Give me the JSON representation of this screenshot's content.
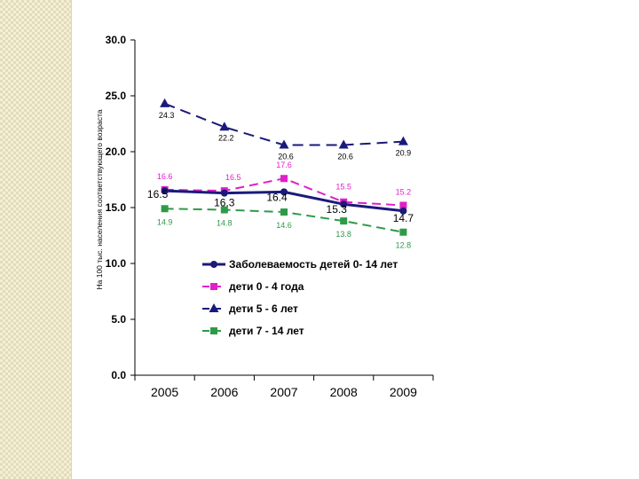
{
  "chart_data": {
    "type": "line",
    "categories": [
      "2005",
      "2006",
      "2007",
      "2008",
      "2009"
    ],
    "ylabel": "На 100 тыс. населения соответствующего возраста",
    "ylim": [
      0,
      30
    ],
    "yticks": [
      "0.0",
      "5.0",
      "10.0",
      "15.0",
      "20.0",
      "25.0",
      "30.0"
    ],
    "legend_position": "right-center",
    "series": [
      {
        "name": "Заболеваемость детей 0- 14 лет",
        "values": [
          16.5,
          16.3,
          16.4,
          15.3,
          14.7
        ],
        "labels": [
          "16.5",
          "16.3",
          "16.4",
          "15.3",
          "14.7"
        ],
        "color": "#1a1a7a"
      },
      {
        "name": "дети 0 - 4 года",
        "values": [
          16.6,
          16.5,
          17.6,
          15.5,
          15.2
        ],
        "labels": [
          "16.6",
          "16.5",
          "17.6",
          "15.5",
          "15.2"
        ],
        "color": "#e020c8"
      },
      {
        "name": "дети 5 - 6 лет",
        "values": [
          24.3,
          22.2,
          20.6,
          20.6,
          20.9
        ],
        "labels": [
          "24.3",
          "22.2",
          "20.6",
          "20.6",
          "20.9"
        ],
        "color": "#1a1a7a"
      },
      {
        "name": "дети 7 - 14 лет",
        "values": [
          14.9,
          14.8,
          14.6,
          13.8,
          12.8
        ],
        "labels": [
          "14.9",
          "14.8",
          "14.6",
          "13.8",
          "12.8"
        ],
        "color": "#2e9a48"
      }
    ]
  }
}
